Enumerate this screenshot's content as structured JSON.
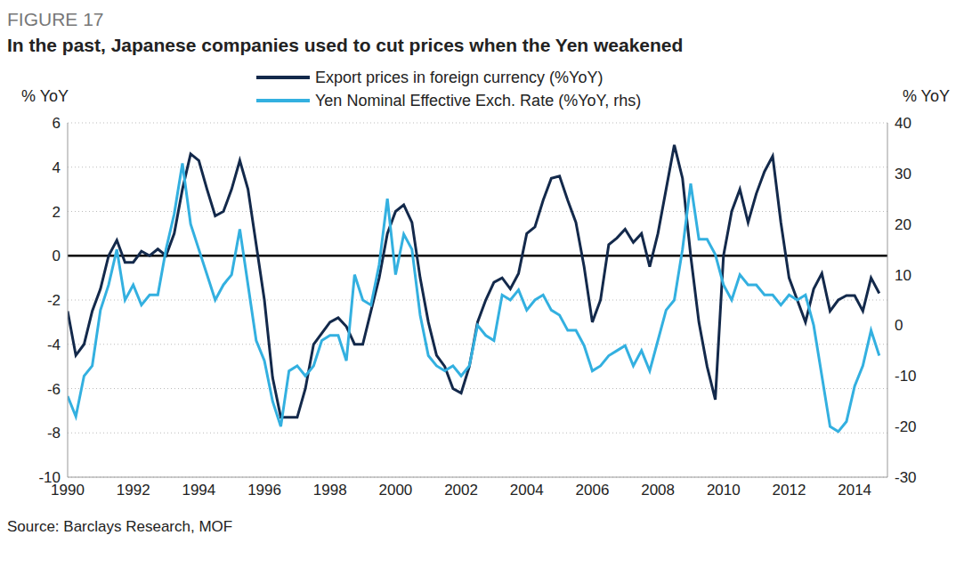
{
  "chart_data": {
    "type": "line",
    "figure_label": "FIGURE 17",
    "title": "In the past, Japanese companies used to cut prices when the Yen weakened",
    "y_label": "% YoY",
    "y2_label": "% YoY",
    "source": "Source: Barclays Research, MOF",
    "grid": true,
    "legend": "top",
    "x": [
      1990,
      1990.25,
      1990.5,
      1990.75,
      1991,
      1991.25,
      1991.5,
      1991.75,
      1992,
      1992.25,
      1992.5,
      1992.75,
      1993,
      1993.25,
      1993.5,
      1993.75,
      1994,
      1994.25,
      1994.5,
      1994.75,
      1995,
      1995.25,
      1995.5,
      1995.75,
      1996,
      1996.25,
      1996.5,
      1996.75,
      1997,
      1997.25,
      1997.5,
      1997.75,
      1998,
      1998.25,
      1998.5,
      1998.75,
      1999,
      1999.25,
      1999.5,
      1999.75,
      2000,
      2000.25,
      2000.5,
      2000.75,
      2001,
      2001.25,
      2001.5,
      2001.75,
      2002,
      2002.25,
      2002.5,
      2002.75,
      2003,
      2003.25,
      2003.5,
      2003.75,
      2004,
      2004.25,
      2004.5,
      2004.75,
      2005,
      2005.25,
      2005.5,
      2005.75,
      2006,
      2006.25,
      2006.5,
      2006.75,
      2007,
      2007.25,
      2007.5,
      2007.75,
      2008,
      2008.25,
      2008.5,
      2008.75,
      2009,
      2009.25,
      2009.5,
      2009.75,
      2010,
      2010.25,
      2010.5,
      2010.75,
      2011,
      2011.25,
      2011.5,
      2011.75,
      2012,
      2012.25,
      2012.5,
      2012.75,
      2013,
      2013.25,
      2013.5,
      2013.75,
      2014,
      2014.25,
      2014.5,
      2014.75
    ],
    "xlim": [
      1990,
      2015
    ],
    "xticks": [
      1990,
      1992,
      1994,
      1996,
      1998,
      2000,
      2002,
      2004,
      2006,
      2008,
      2010,
      2012,
      2014
    ],
    "ylim": [
      -10,
      6
    ],
    "yticks": [
      -10,
      -8,
      -6,
      -4,
      -2,
      0,
      2,
      4,
      6
    ],
    "y2lim": [
      -30,
      40
    ],
    "y2ticks": [
      -30,
      -20,
      -10,
      0,
      10,
      20,
      30,
      40
    ],
    "series": [
      {
        "name": "Export prices in foreign currency (%YoY)",
        "color": "#13294b",
        "values": [
          -2.5,
          -4.5,
          -4,
          -2.5,
          -1.5,
          0,
          0.7,
          -0.3,
          -0.3,
          0.2,
          0,
          0.3,
          0,
          1,
          3,
          4.6,
          4.3,
          3,
          1.8,
          2,
          3,
          4.3,
          3,
          0.5,
          -2,
          -5.5,
          -7.3,
          -7.3,
          -7.3,
          -6,
          -4,
          -3.5,
          -3,
          -2.8,
          -3.2,
          -4,
          -4,
          -2.5,
          -1,
          1,
          2,
          2.3,
          1.5,
          -1,
          -3,
          -4.5,
          -5,
          -6,
          -6.2,
          -5,
          -3,
          -2,
          -1.2,
          -1,
          -1.5,
          -0.8,
          1,
          1.3,
          2.5,
          3.5,
          3.6,
          2.5,
          1.5,
          -0.5,
          -3,
          -2,
          0.5,
          0.8,
          1.2,
          0.6,
          1,
          -0.5,
          1,
          3,
          5,
          3.5,
          0,
          -3,
          -5,
          -6.5,
          0,
          2,
          3,
          1.5,
          2.8,
          3.8,
          4.5,
          1.5,
          -1,
          -2,
          -3,
          -1.5,
          -0.8,
          -2.5,
          -2,
          -1.8,
          -1.8,
          -2.5,
          -1,
          -1.7
        ]
      },
      {
        "name": "Yen Nominal Effective Exch. Rate (%YoY, rhs)",
        "color": "#33b0e0",
        "axis": "y2",
        "values": [
          -14,
          -18,
          -10,
          -8,
          3,
          8,
          15,
          5,
          8,
          4,
          6,
          6,
          15,
          22,
          32,
          20,
          15,
          10,
          5,
          8,
          10,
          19,
          8,
          -3,
          -7,
          -15,
          -20,
          -9,
          -8,
          -10,
          -8,
          -3,
          -2,
          -2,
          -7,
          10,
          5,
          4,
          12,
          25,
          10,
          18,
          15,
          2,
          -6,
          -8,
          -9,
          -8,
          -10,
          -8,
          0,
          -2,
          -3,
          6,
          5,
          7,
          3,
          5,
          6,
          3,
          2,
          -1,
          -1,
          -4,
          -9,
          -8,
          -6,
          -5,
          -4,
          -8,
          -5,
          -9,
          -3,
          3,
          5,
          15,
          28,
          17,
          17,
          14,
          8,
          5,
          10,
          8,
          8,
          6,
          6,
          4,
          6,
          5,
          6,
          0,
          -10,
          -20,
          -21,
          -19,
          -12,
          -8,
          -1,
          -6
        ]
      }
    ]
  }
}
